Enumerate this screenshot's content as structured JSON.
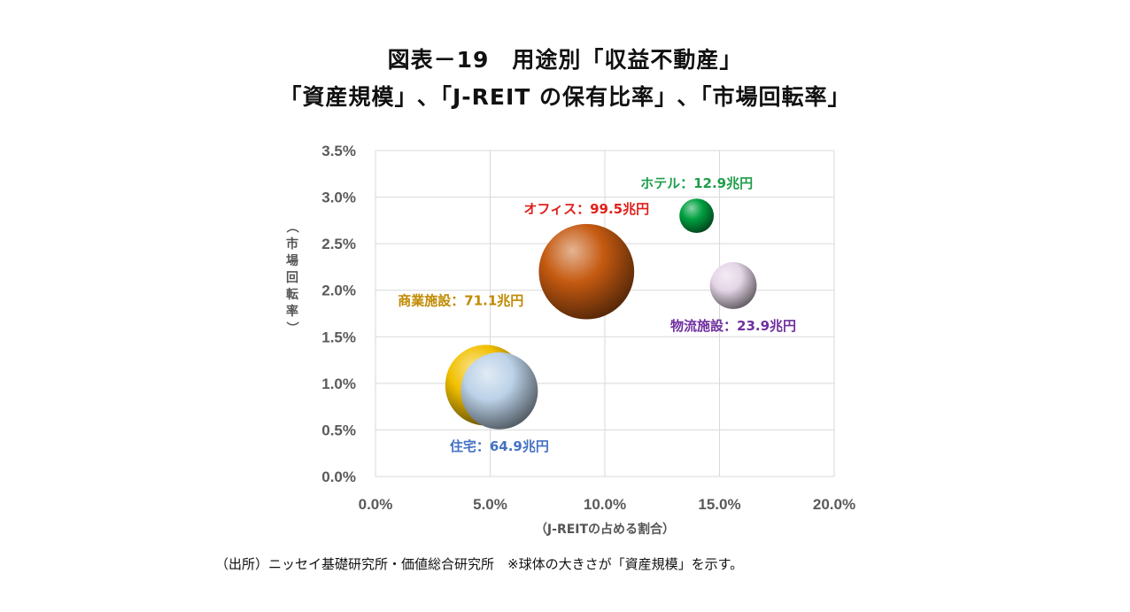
{
  "title_line1": "図表－19　用途別「収益不動産」",
  "title_line2": "「資産規模」､「J-REIT の保有比率」､「市場回転率」",
  "chart_data": {
    "type": "scatter",
    "xlabel": "（J-REITの占める割合）",
    "ylabel": "（市場回転率）",
    "xlim": [
      0,
      0.2
    ],
    "ylim": [
      0,
      0.035
    ],
    "x_ticks": [
      "0.0%",
      "5.0%",
      "10.0%",
      "15.0%",
      "20.0%"
    ],
    "y_ticks": [
      "0.0%",
      "0.5%",
      "1.0%",
      "1.5%",
      "2.0%",
      "2.5%",
      "3.0%",
      "3.5%"
    ],
    "grid": true,
    "series": [
      {
        "label": "オフィス：99.5兆円",
        "x": 0.092,
        "y": 0.022,
        "size": 99.5,
        "color": "#c55a11",
        "label_color": "#e0201b",
        "label_pos": "top"
      },
      {
        "label": "ホテル：12.9兆円",
        "x": 0.14,
        "y": 0.028,
        "size": 12.9,
        "color": "#00a040",
        "label_color": "#1f9e4a",
        "label_pos": "top"
      },
      {
        "label": "物流施設：23.9兆円",
        "x": 0.156,
        "y": 0.0205,
        "size": 23.9,
        "color": "#e4d5e6",
        "label_color": "#7030a0",
        "label_pos": "bottom"
      },
      {
        "label": "商業施設：71.1兆円",
        "x": 0.048,
        "y": 0.0098,
        "size": 71.1,
        "color": "#f2c000",
        "label_color": "#c08a00",
        "label_pos": "left-top"
      },
      {
        "label": "住宅：64.9兆円",
        "x": 0.054,
        "y": 0.0092,
        "size": 64.9,
        "color": "#bcd2e8",
        "label_color": "#4472c4",
        "label_pos": "bottom"
      }
    ]
  },
  "source_note": "（出所）ニッセイ基礎研究所・価値総合研究所　※球体の大きさが「資産規模」を示す。"
}
